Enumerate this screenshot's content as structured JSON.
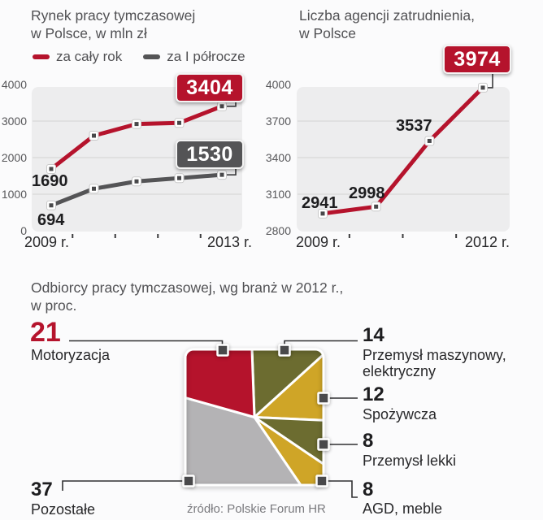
{
  "colors": {
    "red": "#b5132c",
    "dark_gray": "#545456",
    "olive": "#6c6c30",
    "gold": "#cfa527",
    "slice_gray": "#b4b3b5",
    "plot_bg": "#ededee",
    "grid": "#dcdcdc"
  },
  "market": {
    "title_line1": "Rynek pracy tymczasowej",
    "title_line2": "w Polsce, w mln zł",
    "legend_full": "za cały rok",
    "legend_half": "za I półrocze",
    "y_ticks": [
      "4000",
      "3000",
      "2000",
      "1000",
      "0"
    ],
    "x_left": "2009 r.",
    "x_right": "2013 r.",
    "label_first_full": "1690",
    "label_first_half": "694",
    "badge_full": "3404",
    "badge_half": "1530"
  },
  "agencies": {
    "title_line1": "Liczba agencji zatrudnienia,",
    "title_line2": "w Polsce",
    "y_ticks": [
      "4000",
      "3700",
      "3400",
      "3100",
      "2800"
    ],
    "x_left": "2009 r.",
    "x_right": "2012 r.",
    "label_p1": "2941",
    "label_p2": "2998",
    "label_p3": "3537",
    "badge": "3974"
  },
  "industries": {
    "title_line1": "Odbiorcy pracy tymczasowej, wg branż w 2012 r.,",
    "title_line2": "w proc.",
    "motoryzacja_value": "21",
    "motoryzacja_label": "Motoryzacja",
    "maszynowy_value": "14",
    "maszynowy_label1": "Przemysł maszynowy,",
    "maszynowy_label2": "elektryczny",
    "spozywcza_value": "12",
    "spozywcza_label": "Spożywcza",
    "lekki_value": "8",
    "lekki_label": "Przemysł lekki",
    "agd_value": "8",
    "agd_label": "AGD, meble",
    "pozostale_value": "37",
    "pozostale_label": "Pozostałe",
    "source": "źródło: Polskie Forum HR"
  },
  "chart_data": [
    {
      "type": "line",
      "title": "Rynek pracy tymczasowej w Polsce, w mln zł",
      "x": [
        2009,
        2010,
        2011,
        2012,
        2013
      ],
      "x_tick_labels": [
        "2009 r.",
        "2013 r."
      ],
      "series": [
        {
          "name": "za cały rok",
          "color": "#b5132c",
          "values": [
            1690,
            2600,
            2920,
            2950,
            3404
          ]
        },
        {
          "name": "za I półrocze",
          "color": "#545456",
          "values": [
            694,
            1150,
            1350,
            1440,
            1530
          ]
        }
      ],
      "ylim": [
        0,
        4000
      ],
      "y_ticks": [
        0,
        1000,
        2000,
        3000,
        4000
      ],
      "grid": true,
      "legend_position": "top"
    },
    {
      "type": "line",
      "title": "Liczba agencji zatrudnienia, w Polsce",
      "x": [
        2009,
        2010,
        2011,
        2012
      ],
      "x_tick_labels": [
        "2009 r.",
        "2012 r."
      ],
      "series": [
        {
          "name": "Liczba agencji zatrudnienia",
          "color": "#b5132c",
          "values": [
            2941,
            2998,
            3537,
            3974
          ]
        }
      ],
      "ylim": [
        2800,
        4000
      ],
      "y_ticks": [
        2800,
        3100,
        3400,
        3700,
        4000
      ],
      "grid": true
    },
    {
      "type": "pie",
      "title": "Odbiorcy pracy tymczasowej, wg branż w 2012 r., w proc.",
      "slices": [
        {
          "label": "Motoryzacja",
          "value": 21,
          "color": "#b5132c"
        },
        {
          "label": "Przemysł maszynowy, elektryczny",
          "value": 14,
          "color": "#6c6c30"
        },
        {
          "label": "Spożywcza",
          "value": 12,
          "color": "#cfa527"
        },
        {
          "label": "Przemysł lekki",
          "value": 8,
          "color": "#6c6c30"
        },
        {
          "label": "AGD, meble",
          "value": 8,
          "color": "#cfa527"
        },
        {
          "label": "Pozostałe",
          "value": 37,
          "color": "#b4b3b5"
        }
      ],
      "source": "źródło: Polskie Forum HR"
    }
  ]
}
